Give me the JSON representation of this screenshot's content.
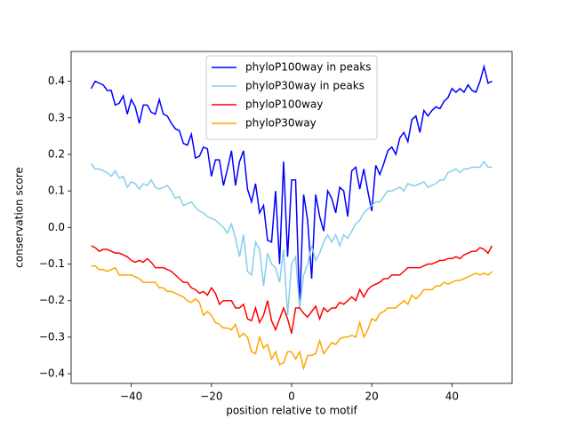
{
  "chart_data": {
    "type": "line",
    "xlabel": "position relative to motif",
    "ylabel": "conservation score",
    "x": [
      -50,
      -49,
      -48,
      -47,
      -46,
      -45,
      -44,
      -43,
      -42,
      -41,
      -40,
      -39,
      -38,
      -37,
      -36,
      -35,
      -34,
      -33,
      -32,
      -31,
      -30,
      -29,
      -28,
      -27,
      -26,
      -25,
      -24,
      -23,
      -22,
      -21,
      -20,
      -19,
      -18,
      -17,
      -16,
      -15,
      -14,
      -13,
      -12,
      -11,
      -10,
      -9,
      -8,
      -7,
      -6,
      -5,
      -4,
      -3,
      -2,
      -1,
      0,
      1,
      2,
      3,
      4,
      5,
      6,
      7,
      8,
      9,
      10,
      11,
      12,
      13,
      14,
      15,
      16,
      17,
      18,
      19,
      20,
      21,
      22,
      23,
      24,
      25,
      26,
      27,
      28,
      29,
      30,
      31,
      32,
      33,
      34,
      35,
      36,
      37,
      38,
      39,
      40,
      41,
      42,
      43,
      44,
      45,
      46,
      47,
      48,
      49,
      50
    ],
    "series": [
      {
        "name": "phyloP100way in peaks",
        "color": "#0000ff",
        "values": [
          0.38,
          0.4,
          0.395,
          0.39,
          0.375,
          0.375,
          0.335,
          0.34,
          0.36,
          0.31,
          0.35,
          0.33,
          0.285,
          0.335,
          0.335,
          0.315,
          0.31,
          0.35,
          0.31,
          0.305,
          0.285,
          0.27,
          0.265,
          0.23,
          0.225,
          0.255,
          0.19,
          0.195,
          0.22,
          0.215,
          0.14,
          0.185,
          0.185,
          0.115,
          0.16,
          0.21,
          0.115,
          0.18,
          0.21,
          0.105,
          0.07,
          0.12,
          0.04,
          0.06,
          -0.035,
          -0.04,
          0.1,
          -0.1,
          0.18,
          -0.08,
          0.13,
          0.13,
          -0.22,
          0.09,
          0.02,
          -0.14,
          0.09,
          0.03,
          -0.01,
          0.1,
          0.08,
          0.04,
          0.11,
          0.1,
          0.03,
          0.155,
          0.165,
          0.105,
          0.16,
          0.1,
          0.045,
          0.17,
          0.145,
          0.175,
          0.21,
          0.22,
          0.2,
          0.245,
          0.26,
          0.235,
          0.295,
          0.305,
          0.26,
          0.32,
          0.305,
          0.32,
          0.33,
          0.325,
          0.345,
          0.355,
          0.38,
          0.37,
          0.38,
          0.37,
          0.39,
          0.375,
          0.37,
          0.4,
          0.44,
          0.395,
          0.4
        ]
      },
      {
        "name": "phyloP30way in peaks",
        "color": "#87ceeb",
        "values": [
          0.175,
          0.16,
          0.16,
          0.155,
          0.15,
          0.14,
          0.155,
          0.135,
          0.14,
          0.11,
          0.125,
          0.12,
          0.105,
          0.12,
          0.115,
          0.13,
          0.11,
          0.105,
          0.11,
          0.115,
          0.1,
          0.08,
          0.085,
          0.06,
          0.065,
          0.07,
          0.055,
          0.045,
          0.04,
          0.03,
          0.025,
          0.02,
          0.01,
          0.0,
          -0.015,
          0.01,
          -0.03,
          -0.08,
          -0.02,
          -0.12,
          -0.13,
          -0.04,
          -0.06,
          -0.16,
          -0.07,
          -0.1,
          -0.11,
          -0.15,
          -0.06,
          -0.24,
          -0.1,
          -0.08,
          -0.22,
          -0.13,
          -0.1,
          -0.05,
          -0.09,
          -0.07,
          -0.04,
          -0.02,
          -0.04,
          -0.02,
          -0.05,
          -0.02,
          -0.03,
          -0.01,
          0.01,
          0.02,
          0.04,
          0.05,
          0.06,
          0.07,
          0.07,
          0.085,
          0.1,
          0.1,
          0.105,
          0.11,
          0.1,
          0.12,
          0.115,
          0.115,
          0.12,
          0.125,
          0.11,
          0.115,
          0.12,
          0.13,
          0.13,
          0.15,
          0.155,
          0.16,
          0.15,
          0.16,
          0.16,
          0.165,
          0.165,
          0.165,
          0.18,
          0.165,
          0.165
        ]
      },
      {
        "name": "phyloP100way",
        "color": "#ff0000",
        "values": [
          -0.05,
          -0.055,
          -0.065,
          -0.06,
          -0.06,
          -0.065,
          -0.07,
          -0.07,
          -0.075,
          -0.08,
          -0.09,
          -0.095,
          -0.09,
          -0.095,
          -0.085,
          -0.095,
          -0.11,
          -0.11,
          -0.11,
          -0.115,
          -0.12,
          -0.13,
          -0.14,
          -0.15,
          -0.15,
          -0.165,
          -0.17,
          -0.18,
          -0.175,
          -0.185,
          -0.165,
          -0.18,
          -0.21,
          -0.2,
          -0.2,
          -0.2,
          -0.22,
          -0.22,
          -0.21,
          -0.25,
          -0.255,
          -0.22,
          -0.26,
          -0.24,
          -0.2,
          -0.255,
          -0.28,
          -0.25,
          -0.22,
          -0.25,
          -0.29,
          -0.22,
          -0.22,
          -0.235,
          -0.245,
          -0.23,
          -0.215,
          -0.25,
          -0.22,
          -0.23,
          -0.22,
          -0.22,
          -0.205,
          -0.21,
          -0.2,
          -0.19,
          -0.2,
          -0.17,
          -0.19,
          -0.17,
          -0.16,
          -0.155,
          -0.15,
          -0.14,
          -0.14,
          -0.13,
          -0.13,
          -0.13,
          -0.12,
          -0.11,
          -0.11,
          -0.11,
          -0.11,
          -0.105,
          -0.1,
          -0.1,
          -0.095,
          -0.09,
          -0.09,
          -0.085,
          -0.085,
          -0.08,
          -0.085,
          -0.075,
          -0.07,
          -0.065,
          -0.065,
          -0.055,
          -0.06,
          -0.07,
          -0.05
        ]
      },
      {
        "name": "phyloP30way",
        "color": "#ffa500",
        "values": [
          -0.105,
          -0.105,
          -0.115,
          -0.115,
          -0.12,
          -0.115,
          -0.11,
          -0.13,
          -0.13,
          -0.13,
          -0.13,
          -0.135,
          -0.14,
          -0.15,
          -0.15,
          -0.15,
          -0.15,
          -0.165,
          -0.165,
          -0.175,
          -0.175,
          -0.18,
          -0.185,
          -0.19,
          -0.2,
          -0.205,
          -0.195,
          -0.205,
          -0.24,
          -0.23,
          -0.24,
          -0.26,
          -0.265,
          -0.275,
          -0.275,
          -0.28,
          -0.265,
          -0.3,
          -0.29,
          -0.3,
          -0.34,
          -0.345,
          -0.3,
          -0.33,
          -0.32,
          -0.36,
          -0.34,
          -0.375,
          -0.37,
          -0.34,
          -0.34,
          -0.36,
          -0.34,
          -0.385,
          -0.35,
          -0.35,
          -0.345,
          -0.31,
          -0.345,
          -0.33,
          -0.315,
          -0.32,
          -0.305,
          -0.3,
          -0.3,
          -0.295,
          -0.3,
          -0.26,
          -0.3,
          -0.28,
          -0.25,
          -0.255,
          -0.235,
          -0.23,
          -0.22,
          -0.22,
          -0.22,
          -0.21,
          -0.2,
          -0.21,
          -0.185,
          -0.195,
          -0.185,
          -0.17,
          -0.17,
          -0.17,
          -0.16,
          -0.16,
          -0.15,
          -0.155,
          -0.15,
          -0.145,
          -0.145,
          -0.14,
          -0.135,
          -0.13,
          -0.125,
          -0.13,
          -0.125,
          -0.13,
          -0.12
        ]
      }
    ],
    "xlim": [
      -55,
      55
    ],
    "xticks": [
      {
        "value": -40,
        "label": "−40"
      },
      {
        "value": -20,
        "label": "−20"
      },
      0,
      20,
      40
    ],
    "ylim": [
      -0.4265,
      0.4815
    ],
    "yticks": [
      {
        "value": -0.4,
        "label": "−0.4"
      },
      {
        "value": -0.3,
        "label": "−0.3"
      },
      {
        "value": -0.2,
        "label": "−0.2"
      },
      {
        "value": -0.1,
        "label": "−0.1"
      },
      {
        "value": 0,
        "label": "0.0"
      },
      0.1,
      0.2,
      0.3,
      0.4
    ],
    "legend": "upper center"
  }
}
